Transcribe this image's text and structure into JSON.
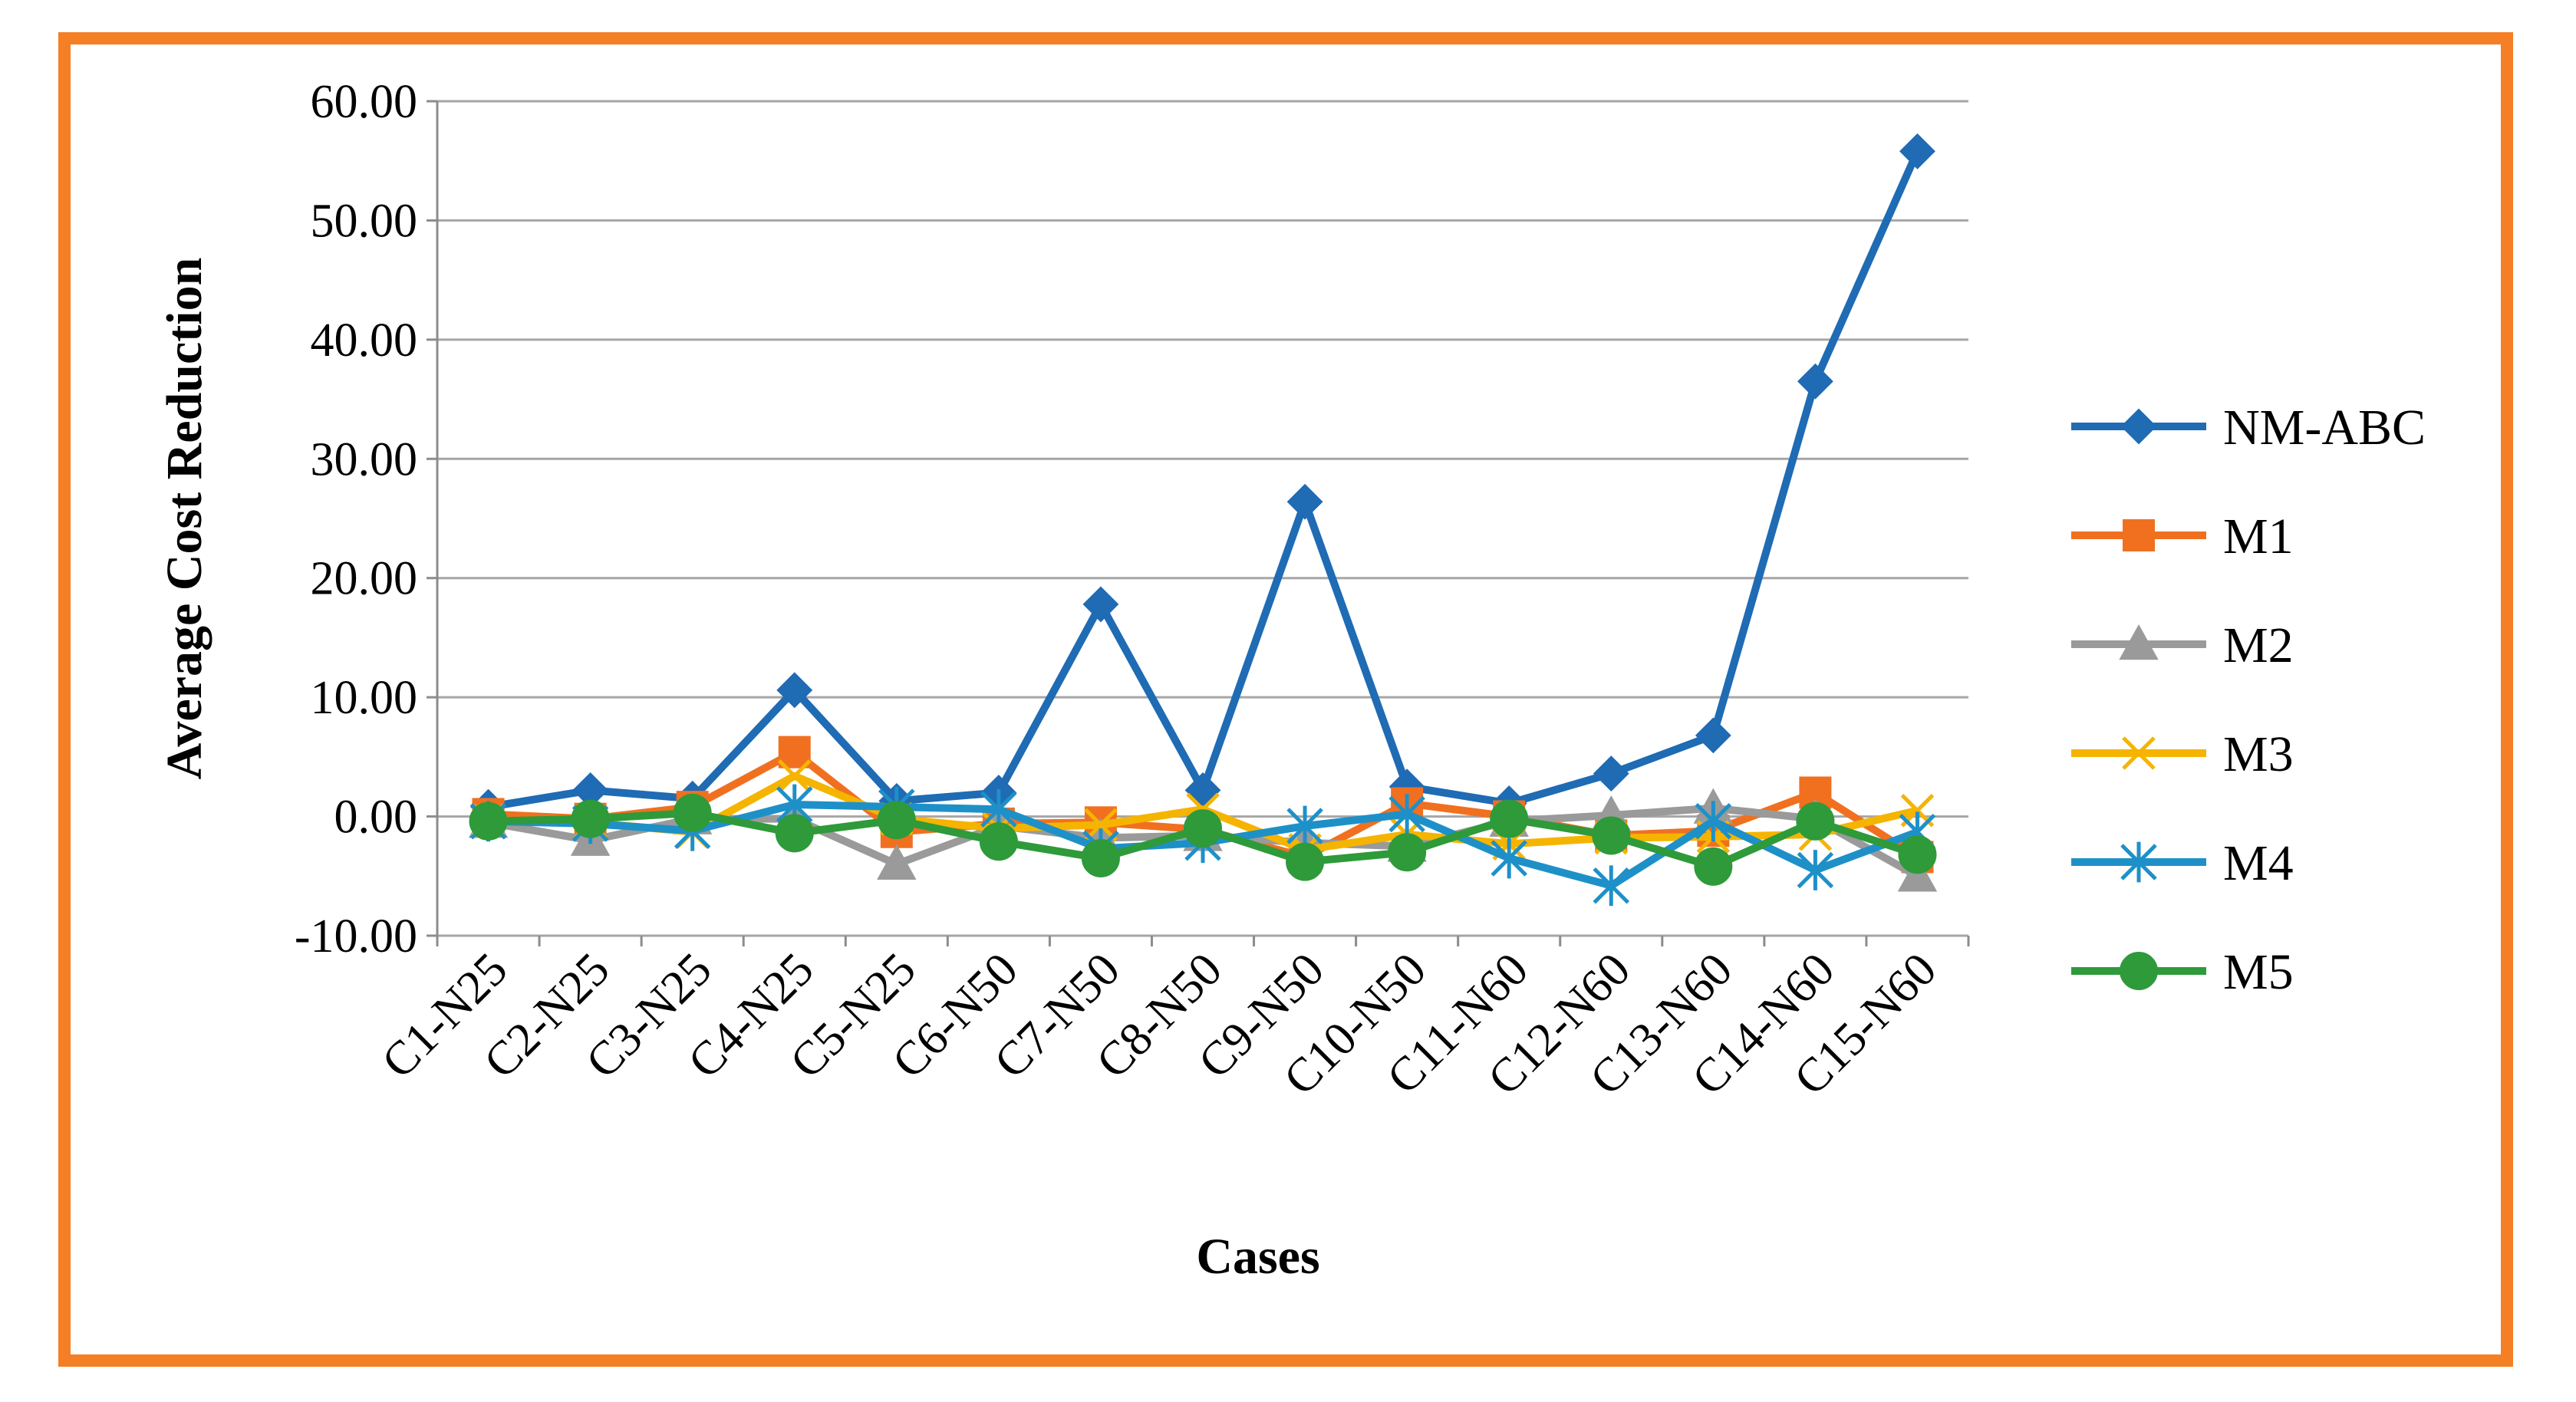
{
  "chart_data": {
    "type": "line",
    "title": "",
    "xlabel": "Cases",
    "ylabel": "Average Cost Reduction",
    "ylim": [
      -10,
      60
    ],
    "yticks": [
      "60.00",
      "50.00",
      "40.00",
      "30.00",
      "20.00",
      "10.00",
      "0.00",
      "-10.00"
    ],
    "ytick_values": [
      60,
      50,
      40,
      30,
      20,
      10,
      0,
      -10
    ],
    "grid": true,
    "legend_position": "right",
    "border_color": "#F47F25",
    "categories": [
      "C1-N25",
      "C2-N25",
      "C3-N25",
      "C4-N25",
      "C5-N25",
      "C6-N50",
      "C7-N50",
      "C8-N50",
      "C9-N50",
      "C10-N50",
      "C11-N60",
      "C12-N60",
      "C13-N60",
      "C14-N60",
      "C15-N60"
    ],
    "series": [
      {
        "name": "NM-ABC",
        "color": "#1F6BB4",
        "marker": "diamond",
        "values": [
          0.8,
          2.2,
          1.5,
          10.6,
          1.3,
          2.0,
          17.8,
          2.2,
          26.4,
          2.5,
          1.1,
          3.6,
          6.8,
          36.5,
          55.8
        ]
      },
      {
        "name": "M1",
        "color": "#F07020",
        "marker": "square",
        "values": [
          0.2,
          -0.2,
          0.8,
          5.4,
          -1.3,
          -0.6,
          -0.5,
          -1.1,
          -3.4,
          1.1,
          0.0,
          -1.6,
          -1.2,
          2.0,
          -3.4
        ]
      },
      {
        "name": "M2",
        "color": "#9A9A9A",
        "marker": "triangle",
        "values": [
          -0.5,
          -2.0,
          -0.2,
          -0.2,
          -4.0,
          -0.8,
          -1.8,
          -1.6,
          -2.2,
          -2.5,
          -0.4,
          0.1,
          0.7,
          -0.2,
          -5.0
        ]
      },
      {
        "name": "M3",
        "color": "#F5B400",
        "marker": "x",
        "values": [
          -0.3,
          -0.5,
          -1.3,
          3.4,
          -0.2,
          -1.0,
          -0.7,
          0.6,
          -2.8,
          -1.5,
          -2.3,
          -1.8,
          -1.7,
          -1.5,
          0.5
        ]
      },
      {
        "name": "M4",
        "color": "#1E90C8",
        "marker": "asterisk",
        "values": [
          -0.4,
          -0.6,
          -1.2,
          1.0,
          0.8,
          0.6,
          -2.7,
          -2.2,
          -0.8,
          0.2,
          -3.5,
          -5.8,
          -0.4,
          -4.5,
          -1.3
        ]
      },
      {
        "name": "M5",
        "color": "#2E9A3A",
        "marker": "circle",
        "values": [
          -0.4,
          -0.2,
          0.3,
          -1.4,
          -0.3,
          -2.1,
          -3.5,
          -1.0,
          -3.8,
          -3.0,
          -0.2,
          -1.6,
          -4.2,
          -0.4,
          -3.2
        ]
      }
    ]
  }
}
